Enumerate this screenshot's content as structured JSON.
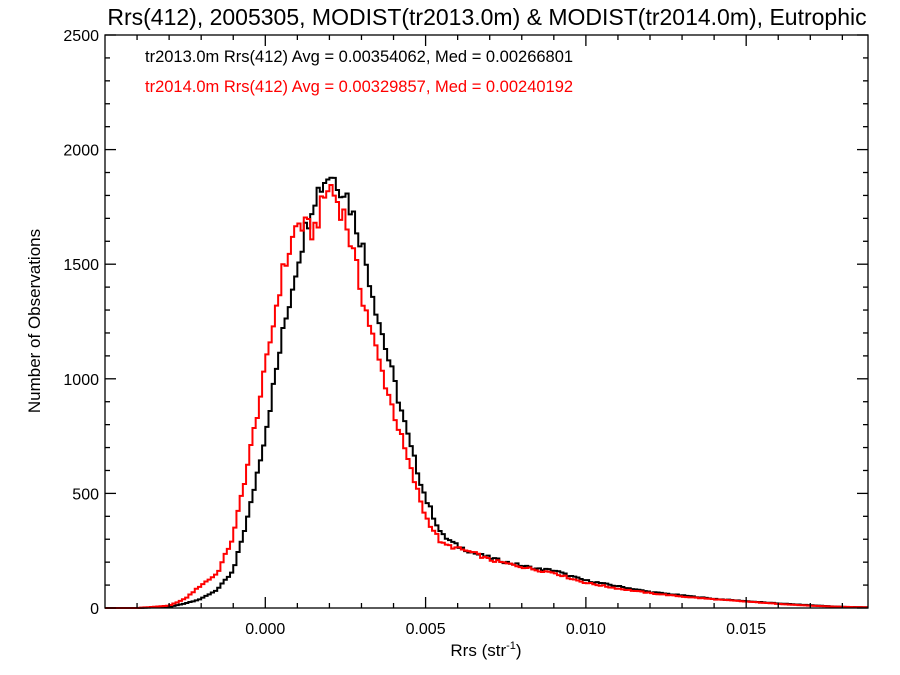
{
  "chart_data": {
    "type": "line",
    "title": "Rrs(412), 2005305, MODIST(tr2013.0m) & MODIST(tr2014.0m), Eutrophic",
    "xlabel_main": "Rrs (str",
    "xlabel_sup": "-1",
    "xlabel_end": ")",
    "ylabel": "Number of Observations",
    "xlim": [
      -0.005,
      0.0188
    ],
    "ylim": [
      0,
      2500
    ],
    "x_ticks": [
      0.0,
      0.005,
      0.01,
      0.015
    ],
    "x_tick_labels": [
      "0.000",
      "0.005",
      "0.010",
      "0.015"
    ],
    "y_ticks": [
      0,
      500,
      1000,
      1500,
      2000,
      2500
    ],
    "y_tick_labels": [
      "0",
      "500",
      "1000",
      "1500",
      "2000",
      "2500"
    ],
    "annotations": [
      "tr2013.0m Rrs(412) Avg = 0.00354062, Med = 0.00266801",
      "tr2014.0m Rrs(412) Avg = 0.00329857, Med = 0.00240192"
    ],
    "series": [
      {
        "color": "#000000",
        "x": [
          -0.005,
          -0.004,
          -0.003,
          -0.0025,
          -0.002,
          -0.0015,
          -0.001,
          -0.0005,
          0.0,
          0.0005,
          0.001,
          0.0015,
          0.002,
          0.0025,
          0.003,
          0.0035,
          0.004,
          0.0045,
          0.005,
          0.0055,
          0.006,
          0.0065,
          0.007,
          0.0075,
          0.008,
          0.0085,
          0.009,
          0.0095,
          0.01,
          0.011,
          0.012,
          0.013,
          0.014,
          0.015,
          0.016,
          0.017,
          0.018,
          0.0188
        ],
        "y": [
          0,
          0,
          5,
          20,
          40,
          80,
          160,
          420,
          760,
          1160,
          1510,
          1790,
          1900,
          1820,
          1600,
          1280,
          1000,
          720,
          480,
          320,
          270,
          240,
          220,
          200,
          185,
          170,
          165,
          140,
          120,
          95,
          70,
          55,
          40,
          30,
          20,
          12,
          5,
          3
        ]
      },
      {
        "color": "#ff0000",
        "x": [
          -0.005,
          -0.004,
          -0.003,
          -0.0025,
          -0.002,
          -0.0015,
          -0.001,
          -0.0005,
          0.0,
          0.0005,
          0.001,
          0.0015,
          0.002,
          0.0025,
          0.003,
          0.0035,
          0.004,
          0.0045,
          0.005,
          0.0055,
          0.006,
          0.0065,
          0.007,
          0.0075,
          0.008,
          0.0085,
          0.009,
          0.0095,
          0.01,
          0.011,
          0.012,
          0.013,
          0.014,
          0.015,
          0.016,
          0.017,
          0.018,
          0.0188
        ],
        "y": [
          0,
          0,
          10,
          40,
          100,
          150,
          310,
          660,
          1040,
          1440,
          1680,
          1640,
          1850,
          1700,
          1380,
          1100,
          860,
          620,
          400,
          280,
          260,
          240,
          210,
          195,
          180,
          165,
          155,
          130,
          110,
          85,
          65,
          50,
          38,
          28,
          18,
          10,
          5,
          3
        ]
      }
    ]
  }
}
